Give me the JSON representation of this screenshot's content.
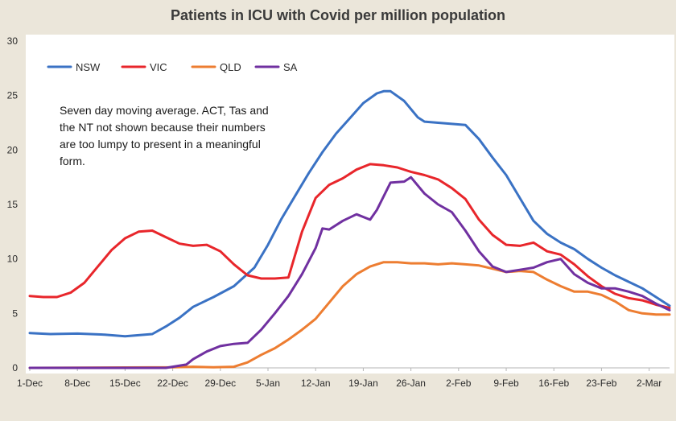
{
  "chart_data": {
    "type": "line",
    "title": "Patients in ICU with Covid per million population",
    "note": "Seven day moving average. ACT, Tas and the NT not shown because their numbers are too lumpy to present in a meaningful form.",
    "xlabel": "",
    "ylabel": "",
    "ylim": [
      0,
      30
    ],
    "yticks": [
      0,
      5,
      10,
      15,
      20,
      25,
      30
    ],
    "x_start": "1-Dec",
    "x_end": "5-Mar",
    "xticks": [
      "1-Dec",
      "8-Dec",
      "15-Dec",
      "22-Dec",
      "29-Dec",
      "5-Jan",
      "12-Jan",
      "19-Jan",
      "26-Jan",
      "2-Feb",
      "9-Feb",
      "16-Feb",
      "23-Feb",
      "2-Mar"
    ],
    "legend_position": "top-left",
    "grid": false,
    "series": [
      {
        "name": "NSW",
        "color": "#3a72c4",
        "points": [
          [
            "1-Dec",
            3.2
          ],
          [
            "4-Dec",
            3.1
          ],
          [
            "8-Dec",
            3.15
          ],
          [
            "12-Dec",
            3.05
          ],
          [
            "15-Dec",
            2.9
          ],
          [
            "19-Dec",
            3.1
          ],
          [
            "21-Dec",
            3.8
          ],
          [
            "23-Dec",
            4.6
          ],
          [
            "25-Dec",
            5.6
          ],
          [
            "28-Dec",
            6.5
          ],
          [
            "31-Dec",
            7.5
          ],
          [
            "3-Jan",
            9.2
          ],
          [
            "5-Jan",
            11.3
          ],
          [
            "7-Jan",
            13.7
          ],
          [
            "9-Jan",
            15.8
          ],
          [
            "11-Jan",
            17.9
          ],
          [
            "13-Jan",
            19.8
          ],
          [
            "15-Jan",
            21.5
          ],
          [
            "17-Jan",
            22.9
          ],
          [
            "19-Jan",
            24.3
          ],
          [
            "21-Jan",
            25.2
          ],
          [
            "22-Jan",
            25.4
          ],
          [
            "23-Jan",
            25.4
          ],
          [
            "25-Jan",
            24.5
          ],
          [
            "27-Jan",
            23.0
          ],
          [
            "28-Jan",
            22.6
          ],
          [
            "30-Jan",
            22.5
          ],
          [
            "1-Feb",
            22.4
          ],
          [
            "3-Feb",
            22.3
          ],
          [
            "5-Feb",
            21.0
          ],
          [
            "7-Feb",
            19.3
          ],
          [
            "9-Feb",
            17.7
          ],
          [
            "11-Feb",
            15.6
          ],
          [
            "13-Feb",
            13.5
          ],
          [
            "15-Feb",
            12.3
          ],
          [
            "17-Feb",
            11.5
          ],
          [
            "19-Feb",
            10.9
          ],
          [
            "21-Feb",
            10.0
          ],
          [
            "23-Feb",
            9.2
          ],
          [
            "25-Feb",
            8.5
          ],
          [
            "27-Feb",
            7.9
          ],
          [
            "1-Mar",
            7.3
          ],
          [
            "3-Mar",
            6.5
          ],
          [
            "5-Mar",
            5.7
          ]
        ]
      },
      {
        "name": "VIC",
        "color": "#e8262b",
        "points": [
          [
            "1-Dec",
            6.6
          ],
          [
            "3-Dec",
            6.5
          ],
          [
            "5-Dec",
            6.5
          ],
          [
            "7-Dec",
            6.9
          ],
          [
            "9-Dec",
            7.8
          ],
          [
            "11-Dec",
            9.3
          ],
          [
            "13-Dec",
            10.8
          ],
          [
            "15-Dec",
            11.9
          ],
          [
            "17-Dec",
            12.5
          ],
          [
            "19-Dec",
            12.6
          ],
          [
            "21-Dec",
            12.0
          ],
          [
            "23-Dec",
            11.4
          ],
          [
            "25-Dec",
            11.2
          ],
          [
            "27-Dec",
            11.3
          ],
          [
            "29-Dec",
            10.7
          ],
          [
            "31-Dec",
            9.5
          ],
          [
            "2-Jan",
            8.5
          ],
          [
            "4-Jan",
            8.2
          ],
          [
            "6-Jan",
            8.2
          ],
          [
            "8-Jan",
            8.3
          ],
          [
            "10-Jan",
            12.5
          ],
          [
            "12-Jan",
            15.6
          ],
          [
            "14-Jan",
            16.8
          ],
          [
            "16-Jan",
            17.4
          ],
          [
            "18-Jan",
            18.2
          ],
          [
            "20-Jan",
            18.7
          ],
          [
            "22-Jan",
            18.6
          ],
          [
            "24-Jan",
            18.4
          ],
          [
            "26-Jan",
            18.0
          ],
          [
            "28-Jan",
            17.7
          ],
          [
            "30-Jan",
            17.3
          ],
          [
            "1-Feb",
            16.5
          ],
          [
            "3-Feb",
            15.5
          ],
          [
            "5-Feb",
            13.6
          ],
          [
            "7-Feb",
            12.2
          ],
          [
            "9-Feb",
            11.3
          ],
          [
            "11-Feb",
            11.2
          ],
          [
            "13-Feb",
            11.5
          ],
          [
            "15-Feb",
            10.7
          ],
          [
            "17-Feb",
            10.4
          ],
          [
            "19-Feb",
            9.5
          ],
          [
            "21-Feb",
            8.4
          ],
          [
            "23-Feb",
            7.5
          ],
          [
            "25-Feb",
            6.8
          ],
          [
            "27-Feb",
            6.4
          ],
          [
            "1-Mar",
            6.2
          ],
          [
            "3-Mar",
            5.8
          ],
          [
            "5-Mar",
            5.5
          ]
        ]
      },
      {
        "name": "QLD",
        "color": "#ed7d31",
        "points": [
          [
            "1-Dec",
            0.0
          ],
          [
            "22-Dec",
            0.05
          ],
          [
            "25-Dec",
            0.1
          ],
          [
            "28-Dec",
            0.05
          ],
          [
            "31-Dec",
            0.1
          ],
          [
            "2-Jan",
            0.5
          ],
          [
            "4-Jan",
            1.2
          ],
          [
            "6-Jan",
            1.8
          ],
          [
            "8-Jan",
            2.6
          ],
          [
            "10-Jan",
            3.5
          ],
          [
            "12-Jan",
            4.5
          ],
          [
            "14-Jan",
            6.0
          ],
          [
            "16-Jan",
            7.5
          ],
          [
            "18-Jan",
            8.6
          ],
          [
            "20-Jan",
            9.3
          ],
          [
            "22-Jan",
            9.7
          ],
          [
            "24-Jan",
            9.7
          ],
          [
            "26-Jan",
            9.6
          ],
          [
            "28-Jan",
            9.6
          ],
          [
            "30-Jan",
            9.5
          ],
          [
            "1-Feb",
            9.6
          ],
          [
            "3-Feb",
            9.5
          ],
          [
            "5-Feb",
            9.4
          ],
          [
            "7-Feb",
            9.1
          ],
          [
            "9-Feb",
            8.8
          ],
          [
            "11-Feb",
            8.9
          ],
          [
            "13-Feb",
            8.8
          ],
          [
            "15-Feb",
            8.1
          ],
          [
            "17-Feb",
            7.5
          ],
          [
            "19-Feb",
            7.0
          ],
          [
            "21-Feb",
            7.0
          ],
          [
            "23-Feb",
            6.7
          ],
          [
            "25-Feb",
            6.1
          ],
          [
            "27-Feb",
            5.3
          ],
          [
            "1-Mar",
            5.0
          ],
          [
            "3-Mar",
            4.9
          ],
          [
            "5-Mar",
            4.9
          ]
        ]
      },
      {
        "name": "SA",
        "color": "#7030a0",
        "points": [
          [
            "1-Dec",
            0.0
          ],
          [
            "21-Dec",
            0.0
          ],
          [
            "24-Dec",
            0.3
          ],
          [
            "25-Dec",
            0.8
          ],
          [
            "27-Dec",
            1.5
          ],
          [
            "29-Dec",
            2.0
          ],
          [
            "31-Dec",
            2.2
          ],
          [
            "2-Jan",
            2.3
          ],
          [
            "4-Jan",
            3.5
          ],
          [
            "6-Jan",
            5.0
          ],
          [
            "8-Jan",
            6.6
          ],
          [
            "10-Jan",
            8.6
          ],
          [
            "12-Jan",
            11.0
          ],
          [
            "13-Jan",
            12.8
          ],
          [
            "14-Jan",
            12.7
          ],
          [
            "16-Jan",
            13.5
          ],
          [
            "18-Jan",
            14.1
          ],
          [
            "20-Jan",
            13.6
          ],
          [
            "21-Jan",
            14.5
          ],
          [
            "23-Jan",
            17.0
          ],
          [
            "25-Jan",
            17.1
          ],
          [
            "26-Jan",
            17.5
          ],
          [
            "28-Jan",
            16.0
          ],
          [
            "30-Jan",
            15.0
          ],
          [
            "1-Feb",
            14.3
          ],
          [
            "3-Feb",
            12.6
          ],
          [
            "5-Feb",
            10.7
          ],
          [
            "7-Feb",
            9.3
          ],
          [
            "9-Feb",
            8.8
          ],
          [
            "11-Feb",
            9.0
          ],
          [
            "13-Feb",
            9.2
          ],
          [
            "15-Feb",
            9.7
          ],
          [
            "17-Feb",
            10.0
          ],
          [
            "19-Feb",
            8.6
          ],
          [
            "21-Feb",
            7.8
          ],
          [
            "23-Feb",
            7.3
          ],
          [
            "25-Feb",
            7.3
          ],
          [
            "27-Feb",
            7.0
          ],
          [
            "1-Mar",
            6.6
          ],
          [
            "3-Mar",
            5.9
          ],
          [
            "5-Mar",
            5.3
          ]
        ]
      }
    ]
  }
}
